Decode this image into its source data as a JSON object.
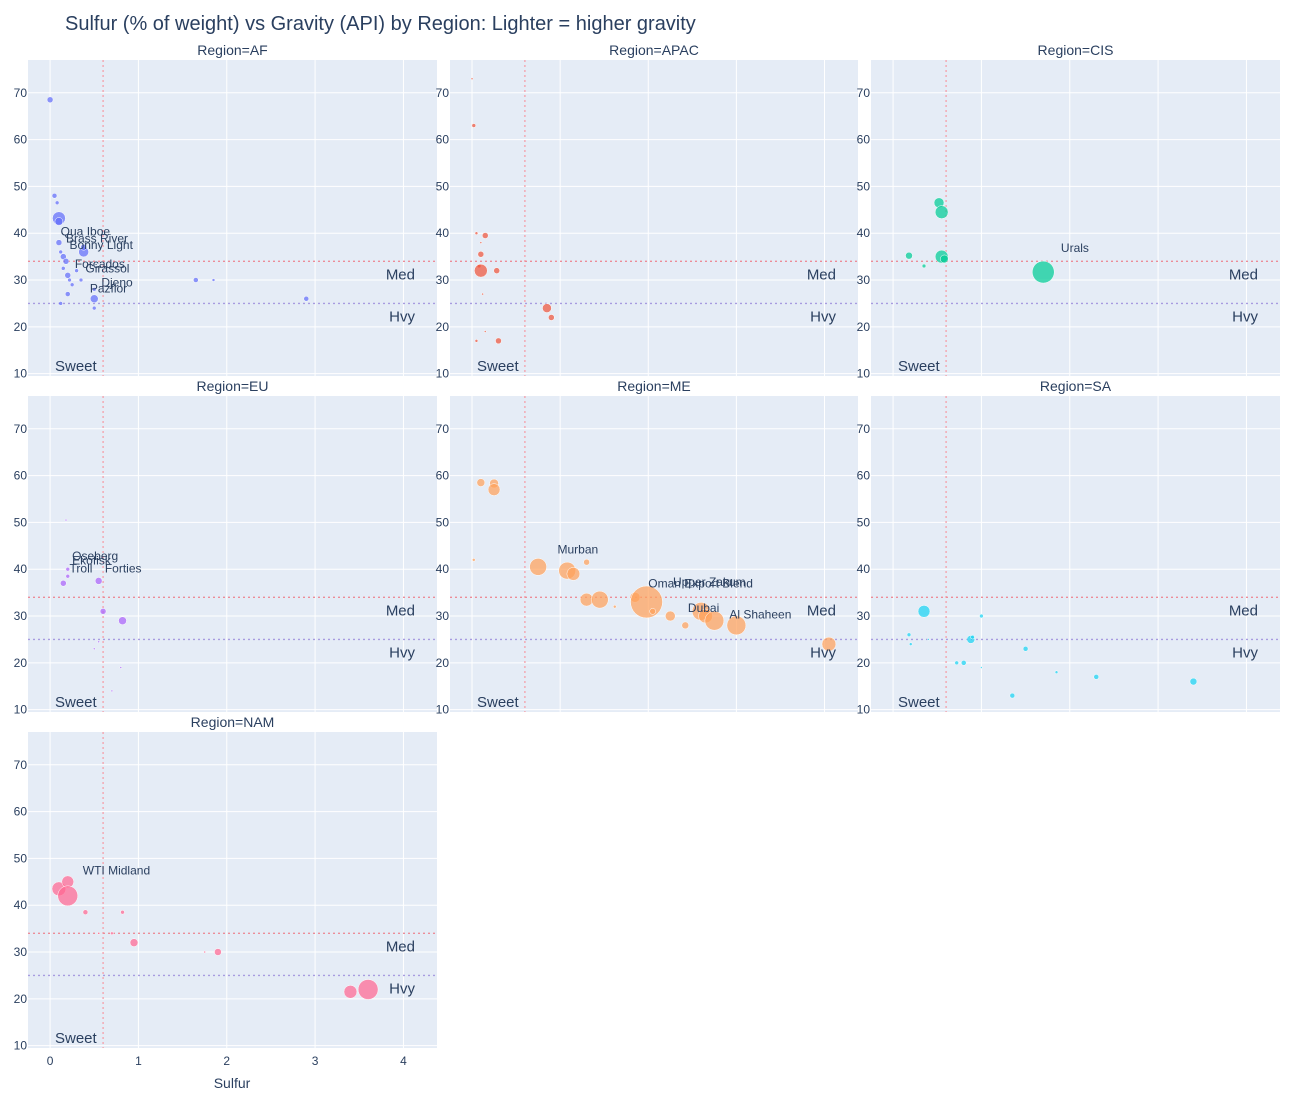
{
  "chart_data": {
    "type": "scatter",
    "title": "Sulfur (% of weight) vs Gravity (API) by Region: Lighter = higher gravity",
    "xlabel": "Sulfur",
    "ylabel": "",
    "xlim": [
      -0.25,
      4.38
    ],
    "ylim": [
      9.5,
      77
    ],
    "xticks": [
      0,
      1,
      2,
      3,
      4
    ],
    "yticks": [
      10,
      20,
      30,
      40,
      50,
      60,
      70
    ],
    "grid": true,
    "legend": "none",
    "reference_lines": {
      "sweet_sulfur": 0.6,
      "medium_api": 34,
      "heavy_api": 25,
      "labels": {
        "sweet": "Sweet",
        "medium": "Med",
        "heavy": "Hvy"
      }
    },
    "facets": [
      {
        "region": "AF",
        "title": "Region=AF",
        "color": "#636EFA",
        "points": [
          {
            "x": 0.0,
            "y": 68.5,
            "s": 3
          },
          {
            "x": 0.05,
            "y": 48,
            "s": 2.5
          },
          {
            "x": 0.08,
            "y": 46.5,
            "s": 2
          },
          {
            "x": 0.1,
            "y": 43.2,
            "s": 6.5
          },
          {
            "x": 0.1,
            "y": 42.5,
            "s": 4
          },
          {
            "x": 0.1,
            "y": 38,
            "s": 3
          },
          {
            "x": 0.12,
            "y": 36,
            "s": 2
          },
          {
            "x": 0.15,
            "y": 35,
            "s": 3
          },
          {
            "x": 0.18,
            "y": 34,
            "s": 3
          },
          {
            "x": 0.15,
            "y": 32.5,
            "s": 2
          },
          {
            "x": 0.2,
            "y": 31,
            "s": 3
          },
          {
            "x": 0.22,
            "y": 30,
            "s": 2
          },
          {
            "x": 0.25,
            "y": 29,
            "s": 2
          },
          {
            "x": 0.3,
            "y": 32,
            "s": 2
          },
          {
            "x": 0.35,
            "y": 30,
            "s": 2
          },
          {
            "x": 0.12,
            "y": 25,
            "s": 2
          },
          {
            "x": 0.2,
            "y": 27,
            "s": 2.5
          },
          {
            "x": 0.38,
            "y": 36,
            "s": 5
          },
          {
            "x": 0.38,
            "y": 37,
            "s": 3
          },
          {
            "x": 0.5,
            "y": 26,
            "s": 4
          },
          {
            "x": 0.5,
            "y": 24,
            "s": 2
          },
          {
            "x": 0.5,
            "y": 28,
            "s": 2
          },
          {
            "x": 1.65,
            "y": 30,
            "s": 2.5
          },
          {
            "x": 1.85,
            "y": 30,
            "s": 1.5
          },
          {
            "x": 2.9,
            "y": 26,
            "s": 2.5
          }
        ],
        "labels": [
          {
            "text": "Qua Iboe",
            "x": 0.12,
            "y": 39.5
          },
          {
            "text": "Brass River",
            "x": 0.18,
            "y": 38
          },
          {
            "text": "Bonny Light",
            "x": 0.22,
            "y": 36.6
          },
          {
            "text": "Forcados",
            "x": 0.28,
            "y": 32.6
          },
          {
            "text": "Girassol",
            "x": 0.4,
            "y": 31.6
          },
          {
            "text": "Djeno",
            "x": 0.58,
            "y": 28.6
          },
          {
            "text": "Pazflor",
            "x": 0.45,
            "y": 27.3
          }
        ]
      },
      {
        "region": "APAC",
        "title": "Region=APAC",
        "color": "#EF553B",
        "points": [
          {
            "x": 0.0,
            "y": 73,
            "s": 1
          },
          {
            "x": 0.02,
            "y": 63,
            "s": 2
          },
          {
            "x": 0.05,
            "y": 40,
            "s": 1.5
          },
          {
            "x": 0.1,
            "y": 38,
            "s": 1
          },
          {
            "x": 0.15,
            "y": 39.5,
            "s": 3
          },
          {
            "x": 0.1,
            "y": 35.5,
            "s": 3
          },
          {
            "x": 0.08,
            "y": 33,
            "s": 2
          },
          {
            "x": 0.1,
            "y": 32,
            "s": 6.5
          },
          {
            "x": 0.28,
            "y": 32,
            "s": 3
          },
          {
            "x": 0.12,
            "y": 27,
            "s": 1
          },
          {
            "x": 0.85,
            "y": 24,
            "s": 4.5
          },
          {
            "x": 0.9,
            "y": 22,
            "s": 3
          },
          {
            "x": 0.15,
            "y": 19,
            "s": 1
          },
          {
            "x": 0.3,
            "y": 17,
            "s": 3
          },
          {
            "x": 0.05,
            "y": 17,
            "s": 1.5
          }
        ],
        "labels": []
      },
      {
        "region": "CIS",
        "title": "Region=CIS",
        "color": "#00CC96",
        "points": [
          {
            "x": 0.18,
            "y": 35.2,
            "s": 3.5
          },
          {
            "x": 0.35,
            "y": 33,
            "s": 2
          },
          {
            "x": 0.52,
            "y": 46.5,
            "s": 5
          },
          {
            "x": 0.55,
            "y": 44.5,
            "s": 6.5
          },
          {
            "x": 0.55,
            "y": 35,
            "s": 6.5
          },
          {
            "x": 0.58,
            "y": 34.5,
            "s": 4
          },
          {
            "x": 1.7,
            "y": 31.7,
            "s": 11
          }
        ],
        "labels": [
          {
            "text": "Urals",
            "x": 1.9,
            "y": 36
          }
        ]
      },
      {
        "region": "EU",
        "title": "Region=EU",
        "color": "#AB63FA",
        "points": [
          {
            "x": 0.18,
            "y": 50.5,
            "s": 1
          },
          {
            "x": 0.2,
            "y": 40,
            "s": 2
          },
          {
            "x": 0.2,
            "y": 38.5,
            "s": 2
          },
          {
            "x": 0.15,
            "y": 37,
            "s": 3
          },
          {
            "x": 0.55,
            "y": 37.5,
            "s": 3.5
          },
          {
            "x": 0.6,
            "y": 31,
            "s": 3
          },
          {
            "x": 0.82,
            "y": 29,
            "s": 4
          },
          {
            "x": 0.55,
            "y": 24.5,
            "s": 1
          },
          {
            "x": 0.5,
            "y": 23,
            "s": 1
          },
          {
            "x": 0.8,
            "y": 19,
            "s": 1
          },
          {
            "x": 0.7,
            "y": 14,
            "s": 1
          }
        ],
        "labels": [
          {
            "text": "Oseberg",
            "x": 0.25,
            "y": 42
          },
          {
            "text": "Ekofisk",
            "x": 0.25,
            "y": 41
          },
          {
            "text": "Troll",
            "x": 0.22,
            "y": 39.3
          },
          {
            "text": "Forties",
            "x": 0.62,
            "y": 39.3
          }
        ]
      },
      {
        "region": "ME",
        "title": "Region=ME",
        "color": "#FFA15A",
        "points": [
          {
            "x": 0.02,
            "y": 42,
            "s": 1.5
          },
          {
            "x": 0.1,
            "y": 58.5,
            "s": 4
          },
          {
            "x": 0.25,
            "y": 58.3,
            "s": 4.5
          },
          {
            "x": 0.25,
            "y": 57,
            "s": 6
          },
          {
            "x": 0.75,
            "y": 40.5,
            "s": 8.5
          },
          {
            "x": 1.08,
            "y": 39.7,
            "s": 8.5
          },
          {
            "x": 1.15,
            "y": 39,
            "s": 6.5
          },
          {
            "x": 1.3,
            "y": 41.5,
            "s": 3
          },
          {
            "x": 1.3,
            "y": 33.5,
            "s": 6.5
          },
          {
            "x": 1.45,
            "y": 33.5,
            "s": 8.5
          },
          {
            "x": 1.62,
            "y": 32,
            "s": 1.5
          },
          {
            "x": 1.85,
            "y": 34,
            "s": 5
          },
          {
            "x": 1.98,
            "y": 33,
            "s": 16
          },
          {
            "x": 2.05,
            "y": 31,
            "s": 3
          },
          {
            "x": 2.25,
            "y": 30,
            "s": 5
          },
          {
            "x": 2.42,
            "y": 28,
            "s": 3.5
          },
          {
            "x": 2.6,
            "y": 31,
            "s": 9
          },
          {
            "x": 2.65,
            "y": 30,
            "s": 7
          },
          {
            "x": 2.75,
            "y": 29,
            "s": 9.5
          },
          {
            "x": 3.0,
            "y": 28,
            "s": 9.5
          },
          {
            "x": 4.05,
            "y": 24,
            "s": 7
          }
        ],
        "labels": [
          {
            "text": "Murban",
            "x": 0.97,
            "y": 43.4
          },
          {
            "text": "Upper Zakum",
            "x": 2.28,
            "y": 36.4
          },
          {
            "text": "Oman Export Blend",
            "x": 2.0,
            "y": 36.1
          },
          {
            "text": "Dubai",
            "x": 2.45,
            "y": 30.9
          },
          {
            "text": "Al Shaheen",
            "x": 2.92,
            "y": 29.5
          }
        ]
      },
      {
        "region": "SA",
        "title": "Region=SA",
        "color": "#19D3F3",
        "points": [
          {
            "x": 0.35,
            "y": 31,
            "s": 6
          },
          {
            "x": 0.18,
            "y": 26,
            "s": 2
          },
          {
            "x": 0.2,
            "y": 24,
            "s": 1.5
          },
          {
            "x": 0.4,
            "y": 25,
            "s": 1
          },
          {
            "x": 0.88,
            "y": 25,
            "s": 4
          },
          {
            "x": 0.9,
            "y": 25.5,
            "s": 2
          },
          {
            "x": 1.0,
            "y": 30,
            "s": 2
          },
          {
            "x": 0.72,
            "y": 20,
            "s": 2
          },
          {
            "x": 0.8,
            "y": 20,
            "s": 2.5
          },
          {
            "x": 1.0,
            "y": 19,
            "s": 1
          },
          {
            "x": 1.5,
            "y": 23,
            "s": 2.5
          },
          {
            "x": 1.35,
            "y": 13,
            "s": 2.5
          },
          {
            "x": 1.85,
            "y": 18,
            "s": 1.5
          },
          {
            "x": 2.3,
            "y": 17,
            "s": 2.5
          },
          {
            "x": 3.4,
            "y": 16,
            "s": 3.5
          }
        ],
        "labels": []
      },
      {
        "region": "NAM",
        "title": "Region=NAM",
        "color": "#FF6692",
        "points": [
          {
            "x": 0.1,
            "y": 43.5,
            "s": 7
          },
          {
            "x": 0.2,
            "y": 45,
            "s": 6
          },
          {
            "x": 0.2,
            "y": 42,
            "s": 10
          },
          {
            "x": 0.4,
            "y": 38.5,
            "s": 2.5
          },
          {
            "x": 0.82,
            "y": 38.5,
            "s": 2
          },
          {
            "x": 0.55,
            "y": 34,
            "s": 1
          },
          {
            "x": 0.7,
            "y": 34,
            "s": 1.5
          },
          {
            "x": 0.95,
            "y": 32,
            "s": 4
          },
          {
            "x": 1.75,
            "y": 30,
            "s": 1
          },
          {
            "x": 1.9,
            "y": 30,
            "s": 3.5
          },
          {
            "x": 3.4,
            "y": 21.5,
            "s": 6.5
          },
          {
            "x": 3.6,
            "y": 22,
            "s": 10
          }
        ],
        "labels": [
          {
            "text": "WTI Midland",
            "x": 0.37,
            "y": 46.6
          }
        ]
      }
    ]
  }
}
